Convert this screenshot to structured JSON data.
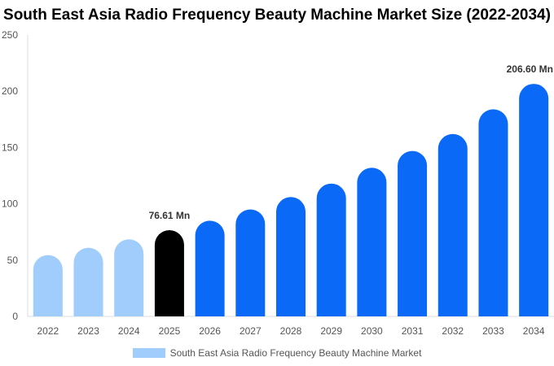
{
  "chart_data": {
    "type": "bar",
    "title": "South East Asia Radio Frequency Beauty Machine Market Size (2022-2034)",
    "xlabel": "",
    "ylabel": "",
    "ylim": [
      0,
      250
    ],
    "yticks": [
      0,
      50,
      100,
      150,
      200,
      250
    ],
    "grid": false,
    "legend_position": "bottom-center",
    "categories": [
      "2022",
      "2023",
      "2024",
      "2025",
      "2026",
      "2027",
      "2028",
      "2029",
      "2030",
      "2031",
      "2032",
      "2033",
      "2034"
    ],
    "series": [
      {
        "name": "South East Asia Radio Frequency Beauty Machine Market",
        "values": [
          54.5,
          61.0,
          68.5,
          76.61,
          85.0,
          95.0,
          106.0,
          118.0,
          132.0,
          147.0,
          162.0,
          184.0,
          206.6
        ]
      }
    ],
    "colors": {
      "historical": "#a0cdfc",
      "current": "#000000",
      "forecast": "#0a6af7"
    },
    "bar_segments": [
      "historical",
      "historical",
      "historical",
      "current",
      "forecast",
      "forecast",
      "forecast",
      "forecast",
      "forecast",
      "forecast",
      "forecast",
      "forecast",
      "forecast"
    ],
    "data_labels": [
      {
        "category": "2025",
        "text": "76.61 Mn"
      },
      {
        "category": "2034",
        "text": "206.60 Mn"
      }
    ],
    "legend_color": "#a0cdfc"
  }
}
